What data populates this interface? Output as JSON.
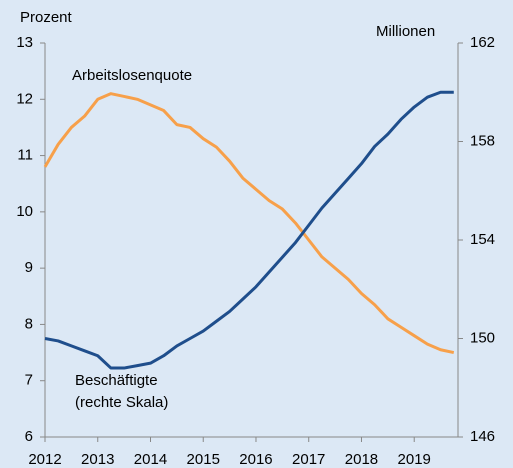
{
  "chart_data": {
    "type": "line",
    "annotations": {
      "left_unit": "Prozent",
      "right_unit": "Millionen",
      "right_note": "(rechte Skala)"
    },
    "x": [
      2012,
      2012.25,
      2012.5,
      2012.75,
      2013,
      2013.25,
      2013.5,
      2013.75,
      2014,
      2014.25,
      2014.5,
      2014.75,
      2015,
      2015.25,
      2015.5,
      2015.75,
      2016,
      2016.25,
      2016.5,
      2016.75,
      2017,
      2017.25,
      2017.5,
      2017.75,
      2018,
      2018.25,
      2018.5,
      2018.75,
      2019,
      2019.25,
      2019.5,
      2019.75
    ],
    "series": [
      {
        "name": "Arbeitslosenquote",
        "color": "#f7a04a",
        "values": [
          10.8,
          11.2,
          11.5,
          11.7,
          12.0,
          12.1,
          12.05,
          12.0,
          11.9,
          11.8,
          11.55,
          11.5,
          11.3,
          11.15,
          10.9,
          10.6,
          10.4,
          10.2,
          10.05,
          9.8,
          9.5,
          9.2,
          9.0,
          8.8,
          8.55,
          8.35,
          8.1,
          7.95,
          7.8,
          7.65,
          7.55,
          7.5
        ]
      },
      {
        "name": "Beschäftigte",
        "color": "#1f4e8c",
        "axis": "y2",
        "values": [
          150.0,
          149.9,
          149.7,
          149.5,
          149.3,
          148.8,
          148.8,
          148.9,
          149.0,
          149.3,
          149.7,
          150.0,
          150.3,
          150.7,
          151.1,
          151.6,
          152.1,
          152.7,
          153.3,
          153.9,
          154.6,
          155.3,
          155.9,
          156.5,
          157.1,
          157.8,
          158.3,
          158.9,
          159.4,
          159.8,
          160.0,
          160.0
        ]
      }
    ],
    "xlim": [
      2012,
      2019.83
    ],
    "xticks": [
      2012,
      2013,
      2014,
      2015,
      2016,
      2017,
      2018,
      2019
    ],
    "ylim": [
      6,
      13
    ],
    "yticks": [
      6,
      7,
      8,
      9,
      10,
      11,
      12,
      13
    ],
    "y2lim": [
      146,
      162
    ],
    "y2ticks": [
      146,
      150,
      154,
      158,
      162
    ]
  }
}
